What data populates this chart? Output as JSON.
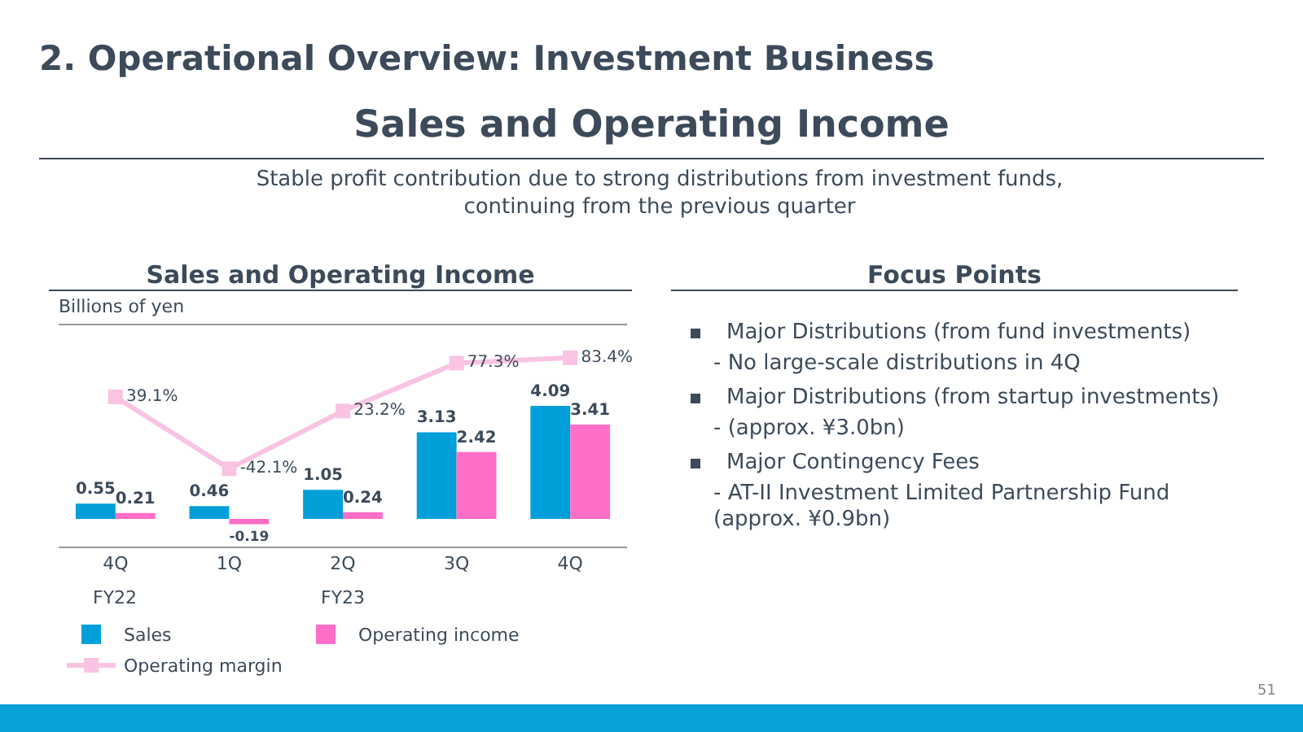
{
  "chart_data": {
    "type": "bar",
    "title": "Sales and Operating Income",
    "subtitle": "Stable profit contribution due to strong distributions from investment funds, continuing from the previous quarter",
    "ylabel": "Billions of yen",
    "categories": [
      "4Q",
      "1Q",
      "2Q",
      "3Q",
      "4Q"
    ],
    "series": [
      {
        "name": "Sales",
        "color": "#009fd9",
        "values": [
          0.55,
          0.46,
          1.05,
          3.13,
          4.09
        ]
      },
      {
        "name": "Operating income",
        "color": "#ff6ec7",
        "values": [
          0.21,
          -0.19,
          0.24,
          2.42,
          3.41
        ]
      },
      {
        "name": "Operating margin",
        "type": "line",
        "axis": "y2",
        "color": "#f9c3e3",
        "marker": "square",
        "values": [
          39.1,
          -42.1,
          23.2,
          77.3,
          83.4
        ],
        "value_labels": [
          "39.1%",
          "-42.1%",
          "23.2%",
          "77.3%",
          "83.4%"
        ]
      }
    ],
    "ylim": [
      -1,
      7
    ],
    "y2lim": [
      -130,
      120
    ],
    "tick_labels": "x",
    "data_labels": true,
    "legend": "bottom",
    "annotations": [
      "2. Operational Overview: Investment Business",
      "Sales and Operating Income",
      "FY22",
      "FY23",
      "Focus Points",
      "Major Distributions (from fund investments)",
      "- No large-scale distributions in 4Q",
      "Major Distributions (from startup investments)",
      "- (approx. ¥3.0bn)",
      "Major Contingency Fees",
      "- AT-II Investment Limited Partnership Fund (approx. ¥0.9bn)",
      "51"
    ]
  }
}
